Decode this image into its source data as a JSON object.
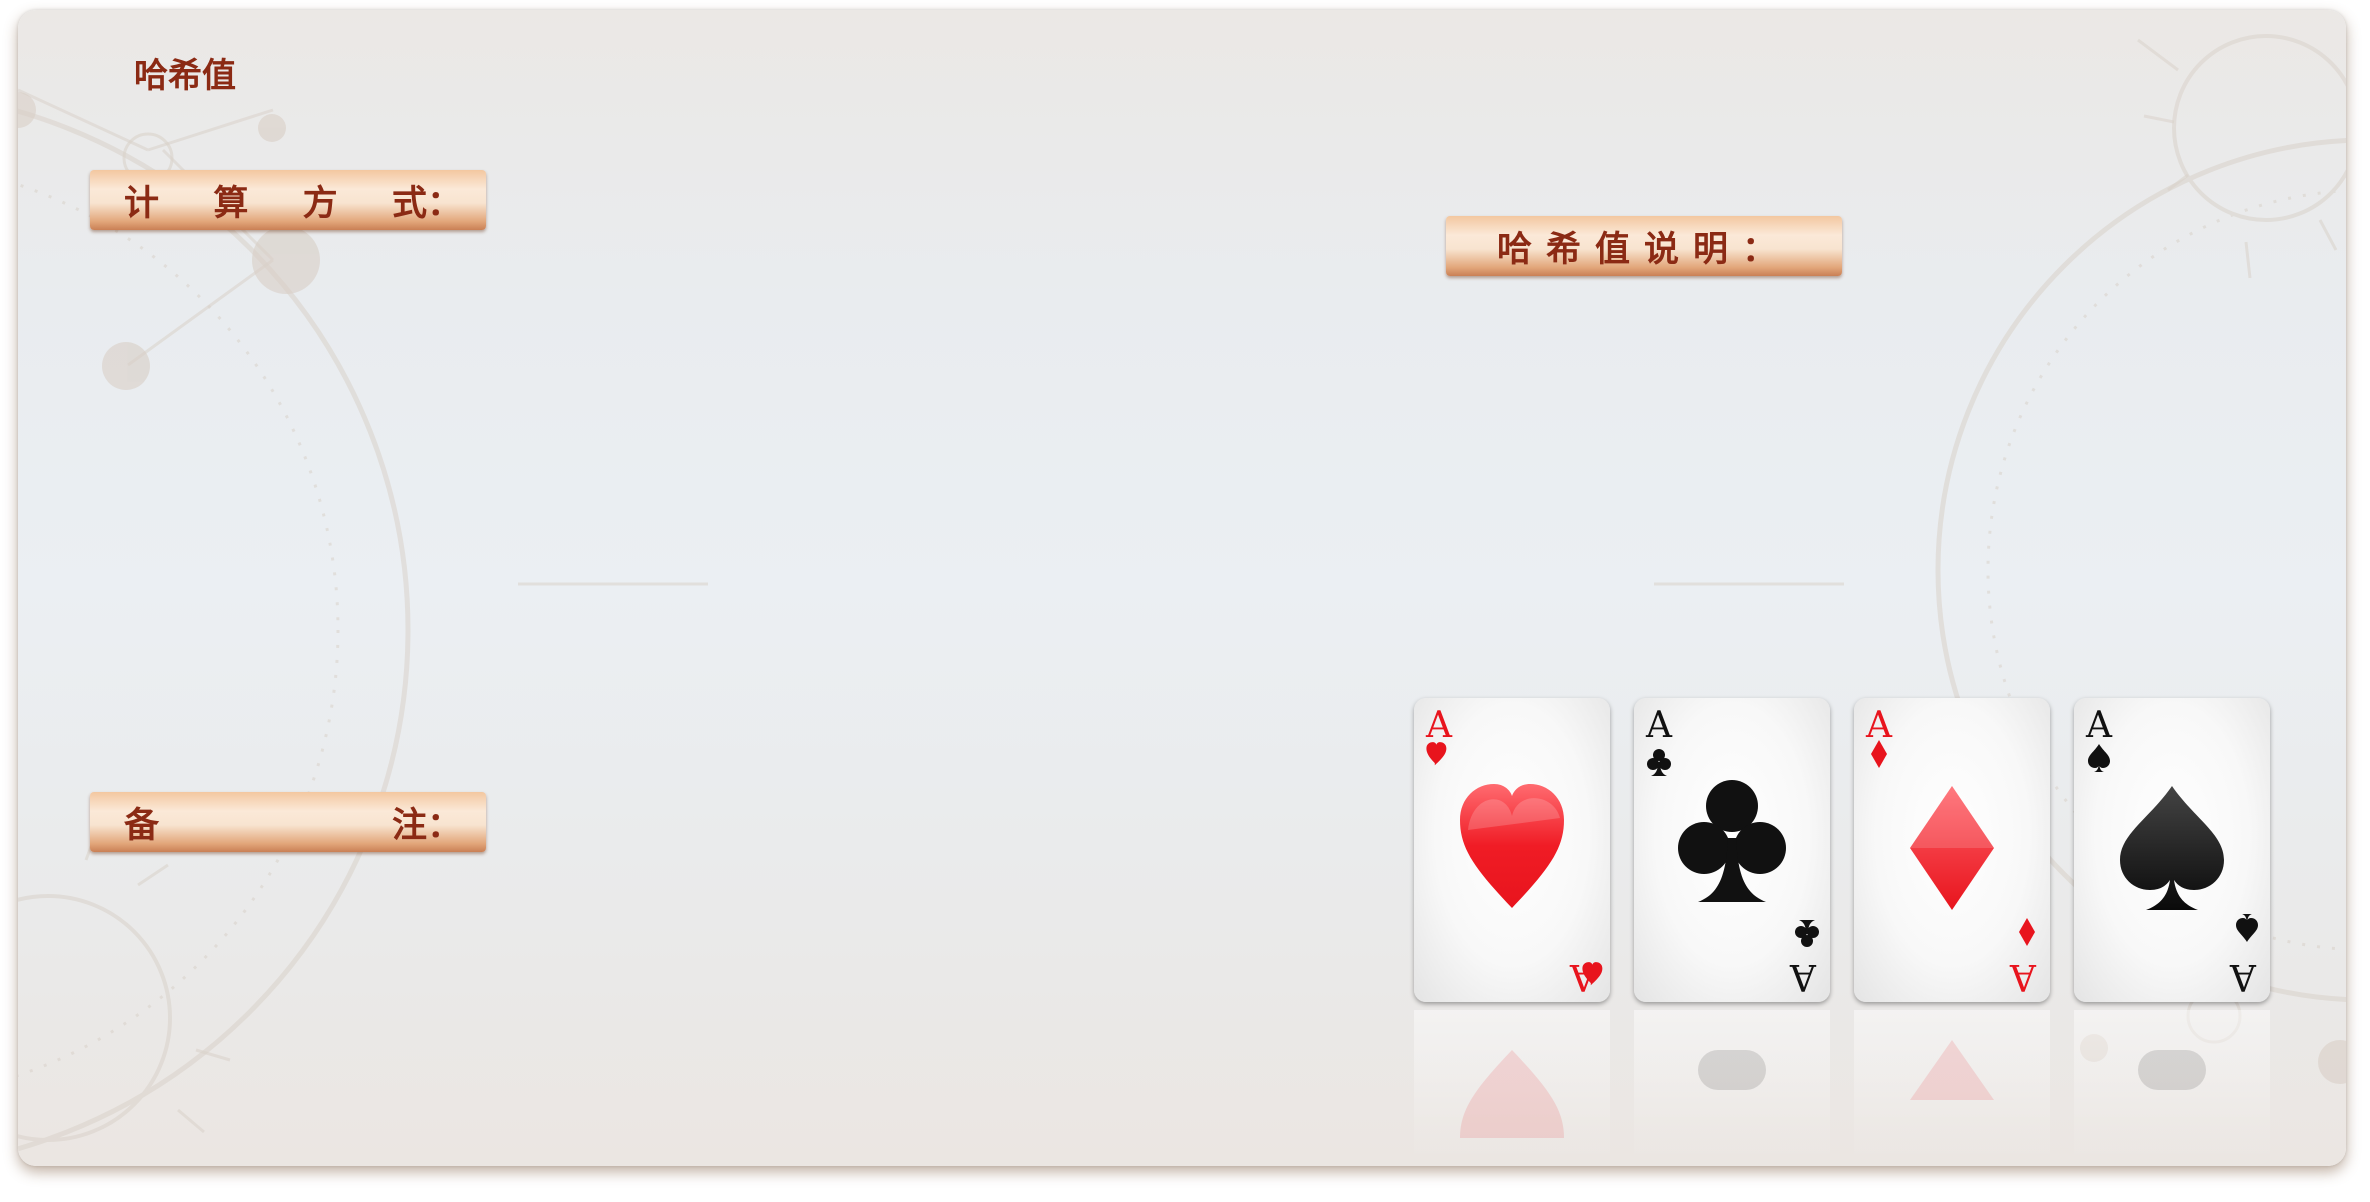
{
  "page": {
    "title": "哈希值"
  },
  "labels": {
    "calc_method": [
      "计",
      "算",
      "方",
      "式："
    ],
    "description": "哈希值说明：",
    "remarks": [
      "备",
      "注："
    ]
  },
  "fields": {
    "calc_method_value": "",
    "description_value": "",
    "remarks_value": ""
  },
  "cards": [
    {
      "rank": "A",
      "suit": "hearts",
      "icon": "heart-icon",
      "color": "#e8141d"
    },
    {
      "rank": "A",
      "suit": "clubs",
      "icon": "club-icon",
      "color": "#111111"
    },
    {
      "rank": "A",
      "suit": "diamonds",
      "icon": "diamond-icon",
      "color": "#e8141d"
    },
    {
      "rank": "A",
      "suit": "spades",
      "icon": "spade-icon",
      "color": "#111111"
    }
  ],
  "colors": {
    "title": "#8b2a14",
    "pill_light": "#fbe9d8",
    "pill_dark": "#c98055",
    "panel_shadow": "#c79a78"
  }
}
